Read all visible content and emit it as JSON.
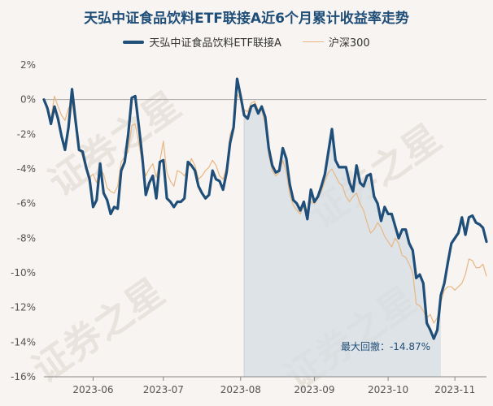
{
  "chart_data": {
    "type": "line",
    "title": "天弘中证食品饮料ETF联接A近6个月累计收益率走势",
    "watermark": "证券之星",
    "annotation": "最大回撤：-14.87%",
    "y_unit": "%",
    "ylim": [
      -16,
      2
    ],
    "y_ticks": [
      2,
      0,
      -2,
      -4,
      -6,
      -8,
      -10,
      -12,
      -14,
      -16
    ],
    "y_tick_labels": [
      "2%",
      "0%",
      "-2%",
      "-4%",
      "-6%",
      "-8%",
      "-10%",
      "-12%",
      "-14%",
      "-16%"
    ],
    "x_tick_labels": [
      "2023-06",
      "2023-07",
      "2023-08",
      "2023-09",
      "2023-10",
      "2023-11"
    ],
    "x_ticks": [
      14,
      34,
      56,
      77,
      98,
      117
    ],
    "x_range": [
      0,
      126
    ],
    "drawdown_range": [
      57,
      113
    ],
    "legend_position": "top",
    "colors": {
      "fund": "#1f4e79",
      "index": "#e8b783",
      "drawdown": "#d6dde3",
      "zero": "#aaaaaa"
    },
    "series": [
      {
        "name": "天弘中证食品饮料ETF联接A",
        "values": [
          0.0,
          -0.5,
          -1.4,
          -0.4,
          -1.1,
          -2.1,
          -2.9,
          -1.6,
          0.6,
          -1.2,
          -2.9,
          -3.0,
          -3.9,
          -4.6,
          -6.2,
          -5.8,
          -3.7,
          -5.4,
          -5.8,
          -6.6,
          -6.2,
          -6.3,
          -4.1,
          -3.6,
          -2.0,
          0.1,
          0.2,
          -1.5,
          -3.3,
          -5.5,
          -4.8,
          -4.4,
          -5.7,
          -3.6,
          -3.5,
          -5.7,
          -5.9,
          -6.2,
          -5.9,
          -5.9,
          -5.7,
          -3.6,
          -3.8,
          -4.1,
          -5.0,
          -5.4,
          -5.7,
          -5.5,
          -4.1,
          -4.6,
          -4.7,
          -5.2,
          -4.2,
          -2.5,
          -1.6,
          1.2,
          0.2,
          -0.9,
          -1.1,
          -0.4,
          -0.3,
          -0.8,
          -0.4,
          -1.0,
          -2.8,
          -3.8,
          -4.2,
          -4.1,
          -2.8,
          -3.4,
          -4.9,
          -5.8,
          -6.0,
          -6.4,
          -5.9,
          -6.9,
          -5.2,
          -5.9,
          -5.6,
          -5.0,
          -4.3,
          -3.0,
          -1.7,
          -3.5,
          -3.9,
          -3.9,
          -3.9,
          -4.8,
          -5.3,
          -3.8,
          -4.8,
          -5.0,
          -4.4,
          -4.3,
          -5.6,
          -6.0,
          -7.0,
          -6.2,
          -6.6,
          -6.6,
          -7.3,
          -8.0,
          -7.5,
          -7.5,
          -8.3,
          -8.7,
          -10.3,
          -10.1,
          -10.6,
          -12.9,
          -13.3,
          -13.8,
          -13.3,
          -11.3,
          -10.6,
          -9.4,
          -8.3,
          -8.0,
          -7.7,
          -6.8,
          -7.8,
          -6.8,
          -6.7,
          -7.1,
          -7.2,
          -7.4,
          -8.2
        ]
      },
      {
        "name": "沪深300",
        "values": [
          0.0,
          -0.7,
          -1.1,
          0.2,
          -0.4,
          -0.9,
          -1.2,
          -0.5,
          -0.1,
          -1.6,
          -2.7,
          -3.3,
          -4.1,
          -4.5,
          -4.3,
          -4.8,
          -4.0,
          -4.3,
          -5.1,
          -5.3,
          -5.4,
          -5.0,
          -3.6,
          -3.3,
          -3.0,
          -1.5,
          -1.4,
          -2.5,
          -3.7,
          -4.4,
          -4.0,
          -3.7,
          -4.5,
          -3.6,
          -2.4,
          -4.2,
          -4.7,
          -5.0,
          -4.1,
          -4.2,
          -4.4,
          -4.0,
          -3.4,
          -3.8,
          -4.6,
          -4.4,
          -4.1,
          -3.9,
          -3.5,
          -3.8,
          -4.4,
          -4.6,
          -3.9,
          -2.0,
          -1.5,
          0.3,
          0.0,
          -0.6,
          -0.7,
          -0.2,
          -0.1,
          -0.6,
          -0.6,
          -1.4,
          -3.2,
          -4.1,
          -4.4,
          -4.2,
          -3.5,
          -4.2,
          -5.5,
          -6.1,
          -6.4,
          -6.6,
          -6.1,
          -6.4,
          -5.9,
          -6.0,
          -5.7,
          -5.3,
          -4.7,
          -4.2,
          -4.0,
          -4.4,
          -4.8,
          -5.0,
          -5.6,
          -5.9,
          -5.6,
          -5.4,
          -6.0,
          -6.4,
          -7.1,
          -7.7,
          -7.5,
          -7.1,
          -7.4,
          -7.9,
          -8.2,
          -8.5,
          -8.0,
          -8.3,
          -9.0,
          -9.1,
          -9.5,
          -10.0,
          -11.8,
          -11.9,
          -12.2,
          -12.6,
          -12.4,
          -12.9,
          -12.6,
          -11.7,
          -11.0,
          -10.8,
          -10.8,
          -11.0,
          -10.8,
          -10.6,
          -10.1,
          -9.2,
          -9.3,
          -9.7,
          -9.7,
          -9.5,
          -10.2
        ]
      }
    ]
  }
}
